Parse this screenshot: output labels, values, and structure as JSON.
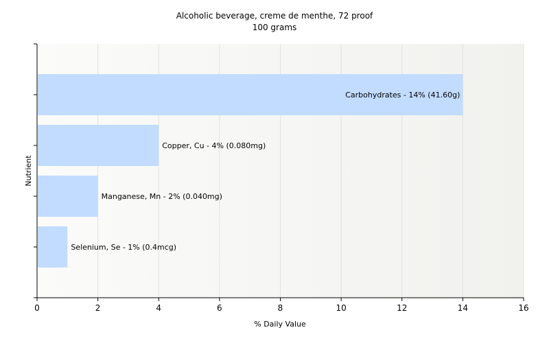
{
  "chart_data": {
    "type": "bar",
    "orientation": "horizontal",
    "title": "Alcoholic beverage, creme de menthe, 72 proof",
    "subtitle": "100 grams",
    "xlabel": "% Daily Value",
    "ylabel": "Nutrient",
    "xlim": [
      0,
      16
    ],
    "xticks": [
      "0",
      "2",
      "4",
      "6",
      "8",
      "10",
      "12",
      "14",
      "16"
    ],
    "grid": true,
    "categories": [
      "Carbohydrates",
      "Copper, Cu",
      "Manganese, Mn",
      "Selenium, Se"
    ],
    "values": [
      14,
      4,
      2,
      1
    ],
    "bar_labels": [
      "Carbohydrates - 14% (41.60g)",
      "Copper, Cu - 4% (0.080mg)",
      "Manganese, Mn - 2% (0.040mg)",
      "Selenium, Se - 1% (0.4mcg)"
    ],
    "bar_color": "#c2dcff",
    "plot_background": "#f4f4f2"
  }
}
